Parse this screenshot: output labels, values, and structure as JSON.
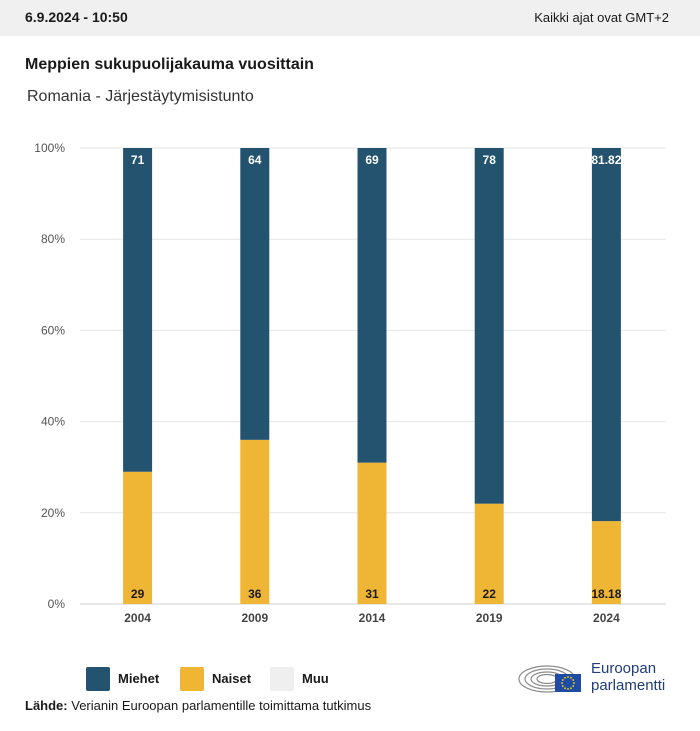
{
  "header": {
    "date": "6.9.2024 - 10:50",
    "timezone": "Kaikki ajat ovat GMT+2"
  },
  "chart_data": {
    "type": "bar",
    "stacked": true,
    "title": "Meppien sukupuolijakauma vuosittain",
    "subtitle": "Romania - Järjestäytymisistunto",
    "categories": [
      "2004",
      "2009",
      "2014",
      "2019",
      "2024"
    ],
    "series": [
      {
        "name": "Naiset",
        "values": [
          29,
          36,
          31,
          22,
          18.18
        ],
        "labels": [
          "29",
          "36",
          "31",
          "22",
          "18.18"
        ],
        "color": "#efb534"
      },
      {
        "name": "Miehet",
        "values": [
          71,
          64,
          69,
          78,
          81.82
        ],
        "labels": [
          "71",
          "64",
          "69",
          "78",
          "81.82"
        ],
        "color": "#24536f"
      }
    ],
    "yticks": [
      "0%",
      "20%",
      "40%",
      "60%",
      "80%",
      "100%"
    ],
    "ylim": [
      0,
      100
    ],
    "grid": true,
    "legend_position": "bottom-left"
  },
  "legend": [
    {
      "label": "Miehet",
      "color": "#24536f"
    },
    {
      "label": "Naiset",
      "color": "#efb534"
    },
    {
      "label": "Muu",
      "color": "#efefef"
    }
  ],
  "source": {
    "label": "Lähde:",
    "text": "Verianin Euroopan parlamentille toimittama tutkimus"
  },
  "logo": {
    "line1": "Euroopan",
    "line2": "parlamentti",
    "star_color": "#ffdd00",
    "flag_color": "#1f4ba5"
  }
}
